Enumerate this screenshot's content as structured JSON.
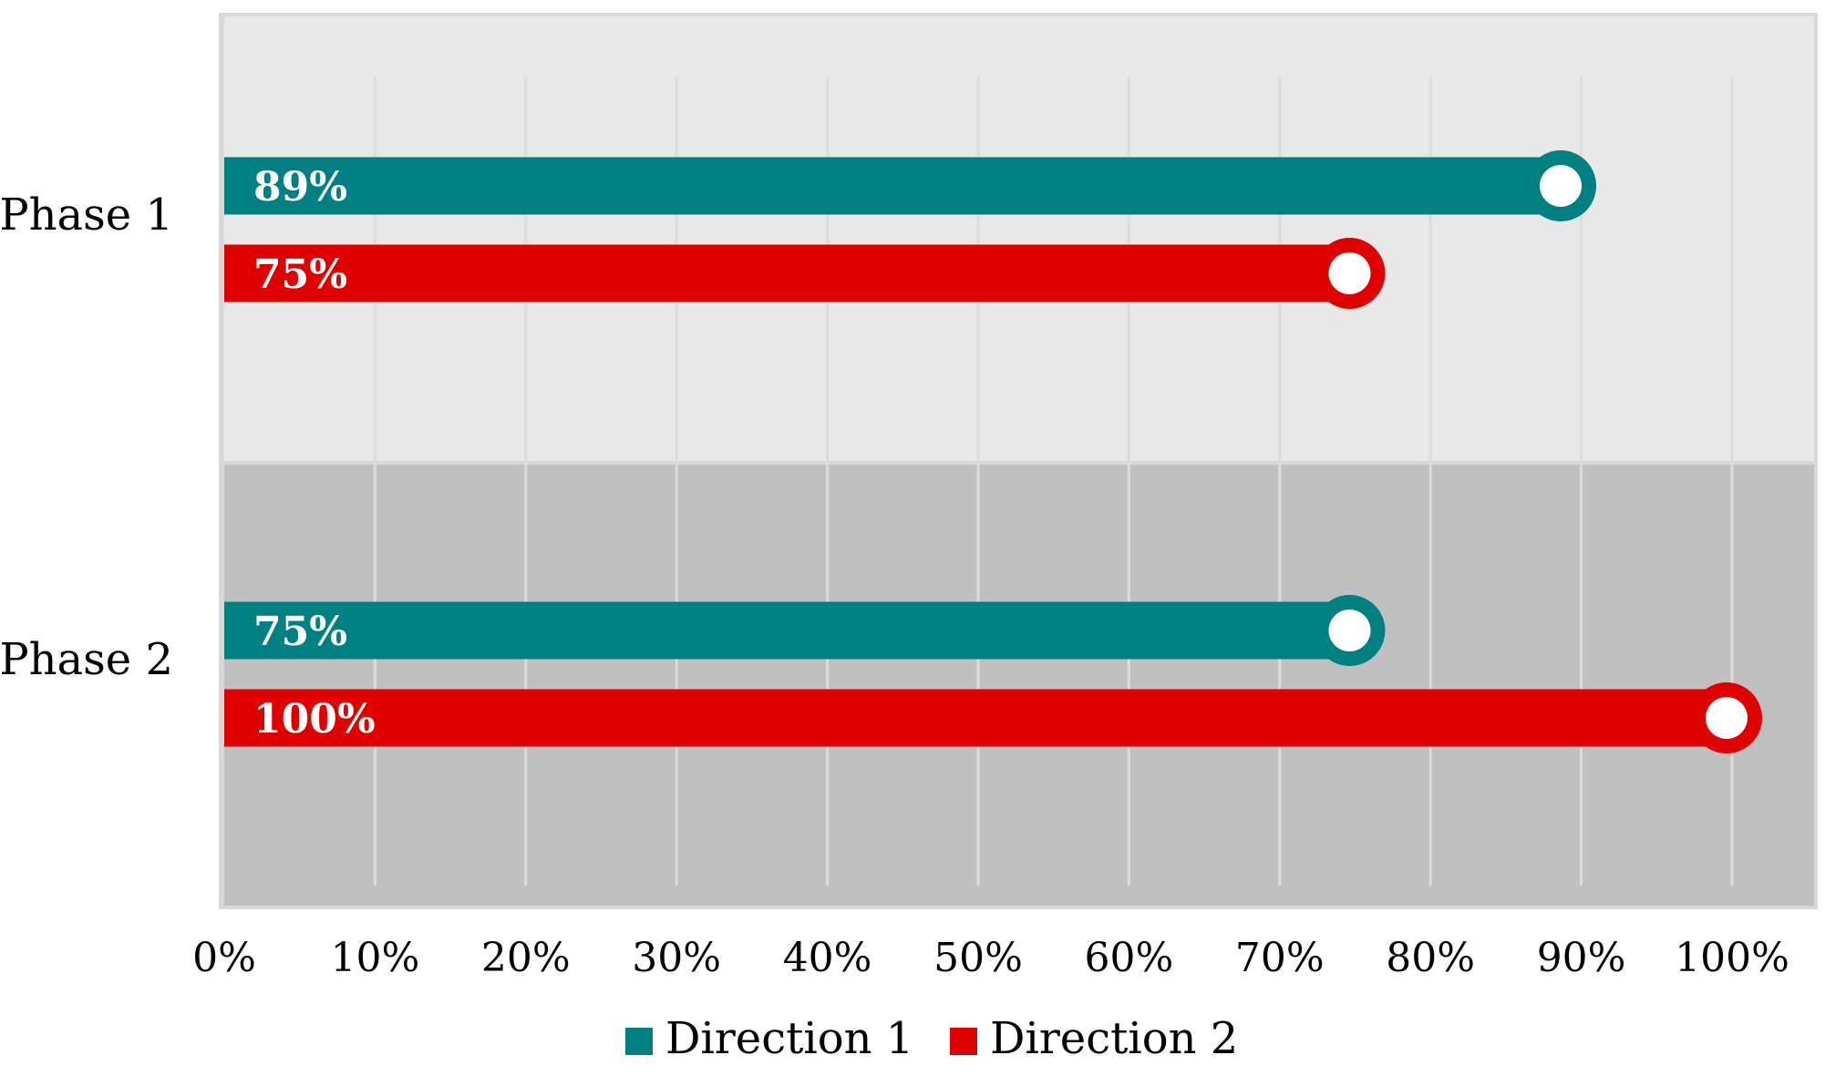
{
  "chart_data": {
    "type": "bar",
    "orientation": "horizontal",
    "categories": [
      "Phase 1",
      "Phase 2"
    ],
    "series": [
      {
        "name": "Direction 1",
        "color": "#008080",
        "values": [
          89,
          75
        ],
        "labels": [
          "89%",
          "75%"
        ]
      },
      {
        "name": "Direction 2",
        "color": "#e00000",
        "values": [
          75,
          100
        ],
        "labels": [
          "75%",
          "100%"
        ]
      }
    ],
    "xlim": [
      0,
      100
    ],
    "x_ticks": [
      "0%",
      "10%",
      "20%",
      "30%",
      "40%",
      "50%",
      "60%",
      "70%",
      "80%",
      "90%",
      "100%"
    ],
    "grid": true,
    "legend_position": "bottom",
    "band_colors": [
      "#e8e8e8",
      "#c0c0c0"
    ]
  }
}
